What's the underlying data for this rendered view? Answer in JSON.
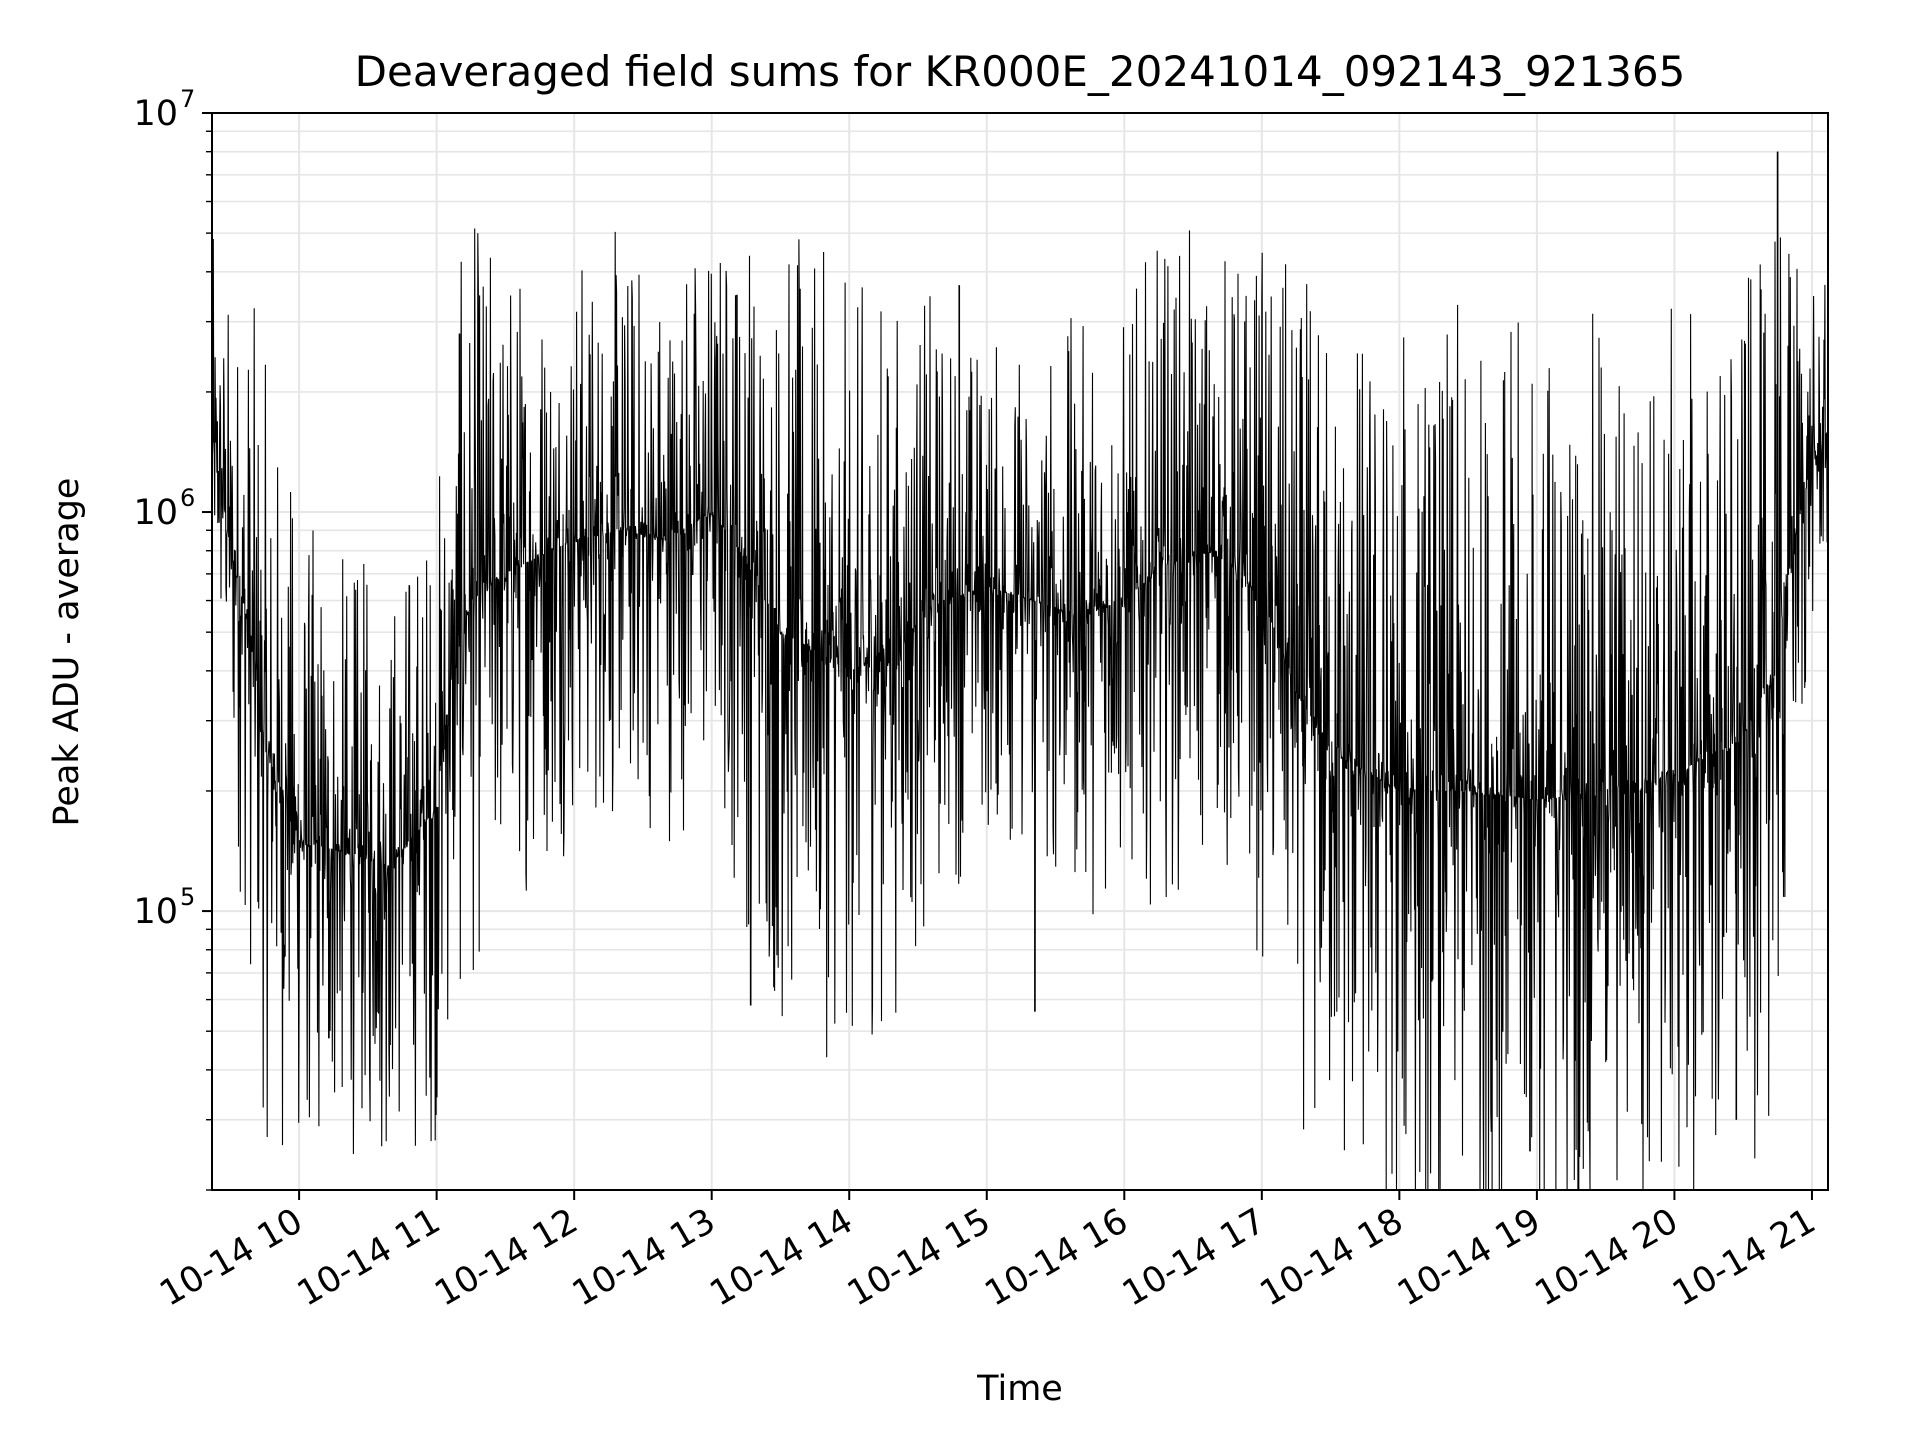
{
  "chart_data": {
    "type": "line",
    "title": "Deaveraged field sums for KR000E_20241014_092143_921365",
    "xlabel": "Time",
    "ylabel": "Peak ADU - average",
    "y_scale": "log",
    "ylim": [
      20000,
      10000000
    ],
    "grid": true,
    "line_color": "#000000",
    "grid_color": "#e6e6e6",
    "x_range": [
      "2024-10-14T09:22",
      "2024-10-14T21:07"
    ],
    "x_tick_labels": [
      "10-14 10",
      "10-14 11",
      "10-14 12",
      "10-14 13",
      "10-14 14",
      "10-14 15",
      "10-14 16",
      "10-14 17",
      "10-14 18",
      "10-14 19",
      "10-14 20",
      "10-14 21"
    ],
    "x_tick_times": [
      "2024-10-14T10:00",
      "2024-10-14T11:00",
      "2024-10-14T12:00",
      "2024-10-14T13:00",
      "2024-10-14T14:00",
      "2024-10-14T15:00",
      "2024-10-14T16:00",
      "2024-10-14T17:00",
      "2024-10-14T18:00",
      "2024-10-14T19:00",
      "2024-10-14T20:00",
      "2024-10-14T21:00"
    ],
    "y_major_ticks": [
      {
        "value": 100000,
        "base": "10",
        "exp": "5"
      },
      {
        "value": 1000000,
        "base": "10",
        "exp": "6"
      },
      {
        "value": 10000000,
        "base": "10",
        "exp": "7"
      }
    ],
    "series": [
      {
        "band": {
          "times": [
            "2024-10-14T09:22",
            "2024-10-14T09:30",
            "2024-10-14T09:45",
            "2024-10-14T10:00",
            "2024-10-14T10:20",
            "2024-10-14T10:40",
            "2024-10-14T11:00",
            "2024-10-14T11:15",
            "2024-10-14T11:30",
            "2024-10-14T12:00",
            "2024-10-14T12:20",
            "2024-10-14T12:40",
            "2024-10-14T13:00",
            "2024-10-14T13:15",
            "2024-10-14T13:30",
            "2024-10-14T14:00",
            "2024-10-14T14:20",
            "2024-10-14T14:40",
            "2024-10-14T15:00",
            "2024-10-14T15:20",
            "2024-10-14T15:40",
            "2024-10-14T16:00",
            "2024-10-14T16:20",
            "2024-10-14T16:40",
            "2024-10-14T17:00",
            "2024-10-14T17:15",
            "2024-10-14T17:30",
            "2024-10-14T18:00",
            "2024-10-14T18:30",
            "2024-10-14T19:00",
            "2024-10-14T19:30",
            "2024-10-14T20:00",
            "2024-10-14T20:30",
            "2024-10-14T20:45",
            "2024-10-14T21:00",
            "2024-10-14T21:07"
          ],
          "center": [
            1500000,
            800000,
            250000,
            150000,
            140000,
            130000,
            180000,
            600000,
            700000,
            850000,
            900000,
            850000,
            1000000,
            750000,
            500000,
            400000,
            450000,
            600000,
            650000,
            600000,
            550000,
            600000,
            750000,
            800000,
            600000,
            350000,
            250000,
            200000,
            200000,
            190000,
            200000,
            220000,
            270000,
            400000,
            1300000,
            1600000
          ],
          "spread": [
            3,
            4,
            8,
            6,
            5,
            5,
            6,
            8,
            6,
            5,
            5,
            5,
            5,
            7,
            9,
            8,
            7,
            5,
            4,
            4,
            5,
            5,
            6,
            5,
            7,
            9,
            12,
            12,
            13,
            13,
            13,
            12,
            11,
            10,
            2.5,
            2.2
          ]
        },
        "spikes": [
          {
            "time": "2024-10-14T09:22",
            "value": 3500000
          },
          {
            "time": "2024-10-14T10:13",
            "value": 48000
          },
          {
            "time": "2024-10-14T11:10",
            "value": 2800000
          },
          {
            "time": "2024-10-14T13:11",
            "value": 3500000
          },
          {
            "time": "2024-10-14T13:17",
            "value": 58000
          },
          {
            "time": "2024-10-14T14:48",
            "value": 3700000
          },
          {
            "time": "2024-10-14T15:21",
            "value": 56000
          },
          {
            "time": "2024-10-14T18:57",
            "value": 25000
          },
          {
            "time": "2024-10-14T20:27",
            "value": 30000
          },
          {
            "time": "2024-10-14T20:45",
            "value": 8000000
          }
        ]
      }
    ]
  }
}
